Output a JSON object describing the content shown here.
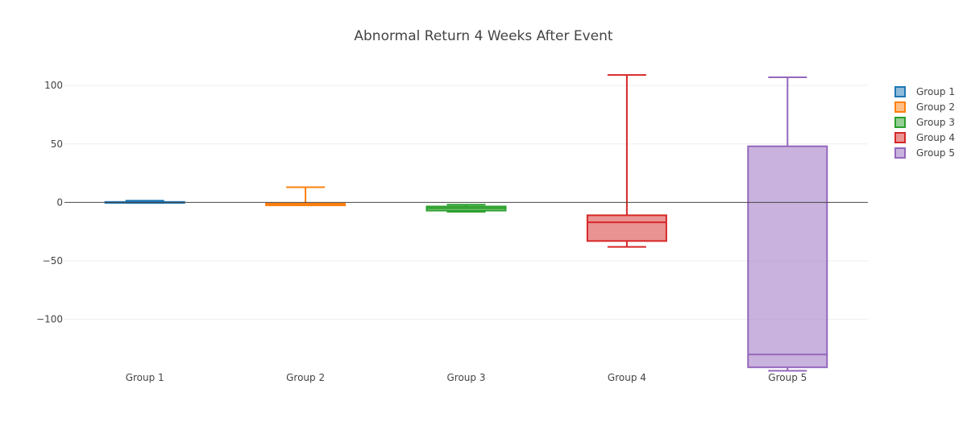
{
  "chart_data": {
    "type": "box",
    "title": "Abnormal Return 4 Weeks After Event",
    "xlabel": "",
    "ylabel": "",
    "categories": [
      "Group 1",
      "Group 2",
      "Group 3",
      "Group 4",
      "Group 5"
    ],
    "ylim": [
      -145,
      118
    ],
    "yticks": [
      100,
      50,
      0,
      -50,
      -100
    ],
    "ytick_labels": [
      "100",
      "50",
      "0",
      "−50",
      "−100"
    ],
    "grid": true,
    "zero_line": true,
    "legend_position": "top-right",
    "series": [
      {
        "name": "Group 1",
        "color": "#1f77b4",
        "min": -0.5,
        "q1": -0.4,
        "median": 0.0,
        "q3": 0.4,
        "max": 1.5
      },
      {
        "name": "Group 2",
        "color": "#ff7f0e",
        "min": -2.5,
        "q1": -2.5,
        "median": -1.5,
        "q3": -1.0,
        "max": 13
      },
      {
        "name": "Group 3",
        "color": "#2ca02c",
        "min": -8,
        "q1": -7,
        "median": -5,
        "q3": -3.5,
        "max": -2
      },
      {
        "name": "Group 4",
        "color": "#d62728",
        "min": -38,
        "q1": -33,
        "median": -17,
        "q3": -11,
        "max": 109
      },
      {
        "name": "Group 5",
        "color": "#9467bd",
        "min": -144,
        "q1": -141,
        "median": -130,
        "q3": 48,
        "max": 107
      }
    ]
  }
}
